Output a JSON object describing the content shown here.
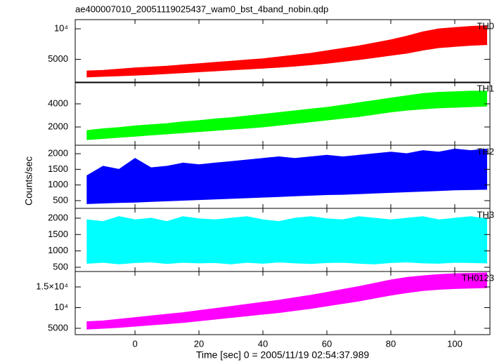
{
  "title": "ae400007010_20051119025437_wam0_bst_4band_nobin.qdp",
  "xlabel": "Time [sec] 0 = 2005/11/19 02:54:37.989",
  "ylabel": "Counts/sec",
  "chart_data": [
    {
      "type": "range",
      "label": "TH0",
      "color": "#ff0000",
      "x": [
        -15,
        -10,
        -5,
        0,
        5,
        10,
        15,
        20,
        25,
        30,
        35,
        40,
        45,
        50,
        55,
        60,
        65,
        70,
        75,
        80,
        85,
        90,
        95,
        100,
        105,
        110
      ],
      "low": [
        2100,
        2200,
        2300,
        2400,
        2500,
        2650,
        2800,
        2950,
        3100,
        3250,
        3400,
        3550,
        3700,
        3900,
        4100,
        4350,
        4650,
        4950,
        5300,
        5650,
        6000,
        6500,
        6900,
        7100,
        7300,
        7400
      ],
      "high": [
        3100,
        3200,
        3400,
        3600,
        3750,
        3900,
        4100,
        4300,
        4500,
        4700,
        4900,
        5100,
        5400,
        5700,
        6000,
        6400,
        6800,
        7200,
        7700,
        8200,
        8800,
        9500,
        10000,
        10200,
        10400,
        10500
      ],
      "xlim": [
        -18.7,
        111
      ],
      "xticks": [
        0,
        20,
        40,
        60,
        80,
        100
      ],
      "ylim": [
        1160,
        11500
      ],
      "yticks": [
        5000,
        {
          "value": 10000,
          "label": "10⁴"
        }
      ]
    },
    {
      "type": "range",
      "label": "TH1",
      "color": "#00ff00",
      "x": [
        -15,
        -10,
        -5,
        0,
        5,
        10,
        15,
        20,
        25,
        30,
        35,
        40,
        45,
        50,
        55,
        60,
        65,
        70,
        75,
        80,
        85,
        90,
        95,
        100,
        105,
        110
      ],
      "low": [
        900,
        1000,
        1100,
        1200,
        1300,
        1400,
        1500,
        1600,
        1700,
        1800,
        1900,
        2000,
        2150,
        2300,
        2450,
        2600,
        2750,
        2900,
        3100,
        3300,
        3450,
        3550,
        3650,
        3700,
        3750,
        3800
      ],
      "high": [
        1700,
        1850,
        1950,
        2100,
        2200,
        2300,
        2450,
        2550,
        2700,
        2800,
        2950,
        3100,
        3250,
        3400,
        3550,
        3700,
        3900,
        4100,
        4300,
        4500,
        4700,
        4900,
        5000,
        5050,
        5100,
        5100
      ],
      "xlim": [
        -18.7,
        111
      ],
      "xticks": [
        0,
        20,
        40,
        60,
        80,
        100
      ],
      "ylim": [
        424,
        5880
      ],
      "yticks": [
        2000,
        4000
      ]
    },
    {
      "type": "range",
      "label": "TH2",
      "color": "#0000ff",
      "x": [
        -15,
        -10,
        -5,
        0,
        5,
        10,
        15,
        20,
        25,
        30,
        35,
        40,
        45,
        50,
        55,
        60,
        65,
        70,
        75,
        80,
        85,
        90,
        95,
        100,
        105,
        110
      ],
      "low": [
        400,
        420,
        440,
        450,
        470,
        490,
        510,
        530,
        550,
        570,
        590,
        610,
        630,
        650,
        670,
        690,
        700,
        720,
        740,
        760,
        780,
        800,
        820,
        840,
        850,
        860
      ],
      "high": [
        1300,
        1600,
        1500,
        1850,
        1550,
        1600,
        1700,
        1650,
        1700,
        1750,
        1800,
        1850,
        1900,
        1850,
        1900,
        1950,
        1900,
        1950,
        2000,
        2050,
        2000,
        2100,
        2050,
        2150,
        2100,
        2150
      ],
      "xlim": [
        -18.7,
        111
      ],
      "xticks": [
        0,
        20,
        40,
        60,
        80,
        100
      ],
      "ylim": [
        253,
        2270
      ],
      "yticks": [
        500,
        1000,
        1500,
        2000
      ]
    },
    {
      "type": "range",
      "label": "TH3",
      "color": "#00ffff",
      "x": [
        -15,
        -10,
        -5,
        0,
        5,
        10,
        15,
        20,
        25,
        30,
        35,
        40,
        45,
        50,
        55,
        60,
        65,
        70,
        75,
        80,
        85,
        90,
        95,
        100,
        105,
        110
      ],
      "low": [
        620,
        650,
        600,
        640,
        660,
        610,
        650,
        630,
        640,
        600,
        650,
        620,
        660,
        630,
        610,
        640,
        650,
        620,
        600,
        640,
        660,
        630,
        620,
        650,
        640,
        630
      ],
      "high": [
        1950,
        1900,
        2050,
        1950,
        2000,
        1900,
        2050,
        1980,
        1950,
        2000,
        2050,
        1950,
        1900,
        2000,
        2050,
        1980,
        1950,
        2050,
        2000,
        1950,
        2000,
        2050,
        1950,
        2000,
        2050,
        1980
      ],
      "xlim": [
        -18.7,
        111
      ],
      "xticks": [
        0,
        20,
        40,
        60,
        80,
        100
      ],
      "ylim": [
        371,
        2300
      ],
      "yticks": [
        500,
        1000,
        1500,
        2000
      ]
    },
    {
      "type": "range",
      "label": "TH0123",
      "color": "#ff00ff",
      "x": [
        -15,
        -10,
        -5,
        0,
        5,
        10,
        15,
        20,
        25,
        30,
        35,
        40,
        45,
        50,
        55,
        60,
        65,
        70,
        75,
        80,
        85,
        90,
        95,
        100,
        105,
        110
      ],
      "low": [
        4800,
        5000,
        5200,
        5500,
        5800,
        6100,
        6400,
        6800,
        7200,
        7600,
        8000,
        8400,
        8800,
        9300,
        9800,
        10400,
        11000,
        11600,
        12300,
        13000,
        13600,
        14100,
        14400,
        14600,
        14700,
        14800
      ],
      "high": [
        6600,
        6800,
        7200,
        7600,
        8000,
        8400,
        8800,
        9300,
        9800,
        10300,
        10800,
        11300,
        11800,
        12400,
        13000,
        13700,
        14400,
        15100,
        15900,
        16700,
        17300,
        17700,
        18000,
        18200,
        18300,
        18400
      ],
      "xlim": [
        -18.7,
        111
      ],
      "xticks": [
        0,
        20,
        40,
        60,
        80,
        100
      ],
      "ylim": [
        3470,
        18730
      ],
      "yticks": [
        5000,
        {
          "value": 10000,
          "label": "10⁴"
        },
        {
          "value": 15000,
          "label": "1.5×10⁴"
        }
      ]
    }
  ]
}
